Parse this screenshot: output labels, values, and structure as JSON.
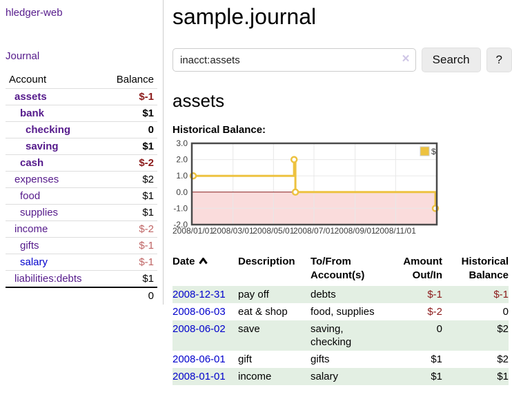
{
  "app": {
    "brand": "hledger-web",
    "nav": {
      "journal": "Journal"
    }
  },
  "sidebar": {
    "header": {
      "account": "Account",
      "balance": "Balance"
    },
    "rows": [
      {
        "name": "assets",
        "indent": 1,
        "bold": true,
        "balance": "$-1",
        "balance_tone": "neg-strong",
        "link": "purple"
      },
      {
        "name": "bank",
        "indent": 2,
        "bold": true,
        "balance": "$1",
        "balance_tone": "plain",
        "link": "purple"
      },
      {
        "name": "checking",
        "indent": 3,
        "bold": true,
        "balance": "0",
        "balance_tone": "plain",
        "link": "purple"
      },
      {
        "name": "saving",
        "indent": 3,
        "bold": true,
        "balance": "$1",
        "balance_tone": "plain",
        "link": "purple"
      },
      {
        "name": "cash",
        "indent": 2,
        "bold": true,
        "balance": "$-2",
        "balance_tone": "neg-strong",
        "link": "purple"
      },
      {
        "name": "expenses",
        "indent": 1,
        "bold": false,
        "balance": "$2",
        "balance_tone": "plain",
        "link": "purple"
      },
      {
        "name": "food",
        "indent": 2,
        "bold": false,
        "balance": "$1",
        "balance_tone": "plain",
        "link": "purple"
      },
      {
        "name": "supplies",
        "indent": 2,
        "bold": false,
        "balance": "$1",
        "balance_tone": "plain",
        "link": "purple"
      },
      {
        "name": "income",
        "indent": 1,
        "bold": false,
        "balance": "$-2",
        "balance_tone": "neg-soft",
        "link": "purple"
      },
      {
        "name": "gifts",
        "indent": 2,
        "bold": false,
        "balance": "$-1",
        "balance_tone": "neg-soft",
        "link": "purple"
      },
      {
        "name": "salary",
        "indent": 2,
        "bold": false,
        "balance": "$-1",
        "balance_tone": "neg-soft",
        "link": "blue"
      },
      {
        "name": "liabilities:debts",
        "indent": 1,
        "bold": false,
        "balance": "$1",
        "balance_tone": "plain",
        "link": "purple"
      }
    ],
    "total": "0"
  },
  "header": {
    "title": "sample.journal"
  },
  "search": {
    "value": "inacct:assets",
    "clear_glyph": "×",
    "button_label": "Search",
    "help_label": "?"
  },
  "account_page": {
    "title": "assets",
    "chart_label": "Historical Balance:"
  },
  "chart_data": {
    "type": "line",
    "steps": true,
    "series": [
      {
        "name": "$",
        "color": "#edc240",
        "points": [
          {
            "x": "2008-01-01",
            "y": 1
          },
          {
            "x": "2008-06-01",
            "y": 2
          },
          {
            "x": "2008-06-03",
            "y": 0
          },
          {
            "x": "2008-12-31",
            "y": -1
          }
        ]
      }
    ],
    "xrange": [
      "2008-01-01",
      "2008-12-31"
    ],
    "ylim": [
      -2,
      3
    ],
    "yticks": [
      "3.0",
      "2.0",
      "1.0",
      "0.0",
      "-1.0",
      "-2.0"
    ],
    "ytick_values": [
      3,
      2,
      1,
      0,
      -1,
      -2
    ],
    "xticks": [
      "2008/01/01",
      "2008/03/01",
      "2008/05/01",
      "2008/07/01",
      "2008/09/01",
      "2008/11/01"
    ],
    "legend_position": "top-right",
    "grid": true,
    "colors": {
      "grid": "#e8e8e8",
      "border": "#4a4a4a",
      "tick_text": "#3d3d3d",
      "negative_region_fill": "#fadcdc",
      "zero_line": "#8b1a1a",
      "marker_fill": "#ffffff"
    }
  },
  "register": {
    "columns": [
      {
        "label": "Date",
        "align": "left"
      },
      {
        "label": "Description",
        "align": "left"
      },
      {
        "label": "To/From Account(s)",
        "align": "left"
      },
      {
        "label": "Amount Out/In",
        "align": "right"
      },
      {
        "label": "Historical Balance",
        "align": "right"
      }
    ],
    "sort": {
      "column": "Date",
      "direction": "asc"
    },
    "rows": [
      {
        "date": "2008-12-31",
        "description": "pay off",
        "accounts": "debts",
        "amount": "$-1",
        "amount_tone": "neg-strong",
        "balance": "$-1",
        "balance_tone": "neg-strong"
      },
      {
        "date": "2008-06-03",
        "description": "eat & shop",
        "accounts": "food, supplies",
        "amount": "$-2",
        "amount_tone": "neg-strong",
        "balance": "0",
        "balance_tone": "plain"
      },
      {
        "date": "2008-06-02",
        "description": "save",
        "accounts": "saving, checking",
        "amount": "0",
        "amount_tone": "plain",
        "balance": "$2",
        "balance_tone": "plain"
      },
      {
        "date": "2008-06-01",
        "description": "gift",
        "accounts": "gifts",
        "amount": "$1",
        "amount_tone": "plain",
        "balance": "$2",
        "balance_tone": "plain"
      },
      {
        "date": "2008-01-01",
        "description": "income",
        "accounts": "salary",
        "amount": "$1",
        "amount_tone": "plain",
        "balance": "$1",
        "balance_tone": "plain"
      }
    ]
  }
}
